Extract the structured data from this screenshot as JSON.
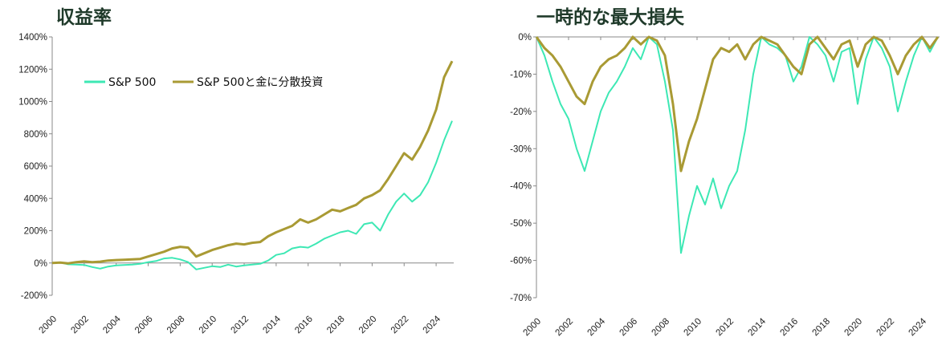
{
  "titles": {
    "left": "収益率",
    "right": "一時的な最大損失"
  },
  "colors": {
    "sp500": "#3de8b4",
    "blend": "#a99a34"
  },
  "chart_data": [
    {
      "type": "line",
      "title": "収益率",
      "x_ticks": [
        "2000",
        "2002",
        "2004",
        "2006",
        "2008",
        "2010",
        "2012",
        "2014",
        "2016",
        "2018",
        "2020",
        "2022",
        "2024"
      ],
      "y_ticks": [
        "1400%",
        "1200%",
        "1000%",
        "800%",
        "600%",
        "400%",
        "200%",
        "0%",
        "-200%"
      ],
      "ylim": [
        -200,
        1400
      ],
      "xlim": [
        2000,
        2025.1
      ],
      "legend": {
        "position": "top-left"
      },
      "series": [
        {
          "name": "S&P 500",
          "color": "#3de8b4",
          "points": [
            [
              2000,
              0
            ],
            [
              2000.5,
              3
            ],
            [
              2001,
              -8
            ],
            [
              2001.5,
              -10
            ],
            [
              2002,
              -12
            ],
            [
              2002.5,
              -25
            ],
            [
              2003,
              -35
            ],
            [
              2003.5,
              -22
            ],
            [
              2004,
              -15
            ],
            [
              2004.5,
              -12
            ],
            [
              2005,
              -10
            ],
            [
              2005.5,
              -5
            ],
            [
              2006,
              5
            ],
            [
              2006.5,
              12
            ],
            [
              2007,
              28
            ],
            [
              2007.5,
              32
            ],
            [
              2008,
              22
            ],
            [
              2008.5,
              5
            ],
            [
              2009,
              -40
            ],
            [
              2009.5,
              -30
            ],
            [
              2010,
              -20
            ],
            [
              2010.5,
              -25
            ],
            [
              2011,
              -10
            ],
            [
              2011.5,
              -22
            ],
            [
              2012,
              -15
            ],
            [
              2012.5,
              -10
            ],
            [
              2013,
              -5
            ],
            [
              2013.5,
              15
            ],
            [
              2014,
              50
            ],
            [
              2014.5,
              60
            ],
            [
              2015,
              90
            ],
            [
              2015.5,
              100
            ],
            [
              2016,
              95
            ],
            [
              2016.5,
              120
            ],
            [
              2017,
              150
            ],
            [
              2017.5,
              170
            ],
            [
              2018,
              190
            ],
            [
              2018.5,
              200
            ],
            [
              2019,
              180
            ],
            [
              2019.5,
              240
            ],
            [
              2020,
              250
            ],
            [
              2020.5,
              200
            ],
            [
              2021,
              300
            ],
            [
              2021.5,
              380
            ],
            [
              2022,
              430
            ],
            [
              2022.5,
              380
            ],
            [
              2023,
              420
            ],
            [
              2023.5,
              500
            ],
            [
              2024,
              620
            ],
            [
              2024.5,
              760
            ],
            [
              2025,
              880
            ]
          ]
        },
        {
          "name": "S&P 500と金に分散投資",
          "color": "#a99a34",
          "points": [
            [
              2000,
              0
            ],
            [
              2000.5,
              2
            ],
            [
              2001,
              -2
            ],
            [
              2001.5,
              5
            ],
            [
              2002,
              10
            ],
            [
              2002.5,
              5
            ],
            [
              2003,
              8
            ],
            [
              2003.5,
              15
            ],
            [
              2004,
              18
            ],
            [
              2004.5,
              20
            ],
            [
              2005,
              22
            ],
            [
              2005.5,
              25
            ],
            [
              2006,
              40
            ],
            [
              2006.5,
              55
            ],
            [
              2007,
              70
            ],
            [
              2007.5,
              90
            ],
            [
              2008,
              100
            ],
            [
              2008.5,
              95
            ],
            [
              2009,
              40
            ],
            [
              2009.5,
              60
            ],
            [
              2010,
              80
            ],
            [
              2010.5,
              95
            ],
            [
              2011,
              110
            ],
            [
              2011.5,
              120
            ],
            [
              2012,
              115
            ],
            [
              2012.5,
              125
            ],
            [
              2013,
              130
            ],
            [
              2013.5,
              165
            ],
            [
              2014,
              190
            ],
            [
              2014.5,
              210
            ],
            [
              2015,
              230
            ],
            [
              2015.5,
              270
            ],
            [
              2016,
              250
            ],
            [
              2016.5,
              270
            ],
            [
              2017,
              300
            ],
            [
              2017.5,
              330
            ],
            [
              2018,
              320
            ],
            [
              2018.5,
              340
            ],
            [
              2019,
              360
            ],
            [
              2019.5,
              400
            ],
            [
              2020,
              420
            ],
            [
              2020.5,
              450
            ],
            [
              2021,
              520
            ],
            [
              2021.5,
              600
            ],
            [
              2022,
              680
            ],
            [
              2022.5,
              640
            ],
            [
              2023,
              720
            ],
            [
              2023.5,
              820
            ],
            [
              2024,
              950
            ],
            [
              2024.5,
              1150
            ],
            [
              2025,
              1250
            ]
          ]
        }
      ]
    },
    {
      "type": "line",
      "title": "一時的な最大損失",
      "x_ticks": [
        "2000",
        "2002",
        "2004",
        "2006",
        "2008",
        "2010",
        "2012",
        "2014",
        "2016",
        "2018",
        "2020",
        "2022",
        "2024"
      ],
      "y_ticks": [
        "0%",
        "-10%",
        "-20%",
        "-30%",
        "-40%",
        "-50%",
        "-60%",
        "-70%"
      ],
      "ylim": [
        -70,
        0
      ],
      "xlim": [
        2000,
        2025.1
      ],
      "series": [
        {
          "name": "S&P 500",
          "color": "#3de8b4",
          "points": [
            [
              2000,
              0
            ],
            [
              2000.5,
              -5
            ],
            [
              2001,
              -12
            ],
            [
              2001.5,
              -18
            ],
            [
              2002,
              -22
            ],
            [
              2002.5,
              -30
            ],
            [
              2003,
              -36
            ],
            [
              2003.5,
              -28
            ],
            [
              2004,
              -20
            ],
            [
              2004.5,
              -15
            ],
            [
              2005,
              -12
            ],
            [
              2005.5,
              -8
            ],
            [
              2006,
              -3
            ],
            [
              2006.5,
              -6
            ],
            [
              2007,
              0
            ],
            [
              2007.5,
              -2
            ],
            [
              2008,
              -12
            ],
            [
              2008.5,
              -25
            ],
            [
              2009,
              -58
            ],
            [
              2009.5,
              -48
            ],
            [
              2010,
              -40
            ],
            [
              2010.5,
              -45
            ],
            [
              2011,
              -38
            ],
            [
              2011.5,
              -46
            ],
            [
              2012,
              -40
            ],
            [
              2012.5,
              -36
            ],
            [
              2013,
              -25
            ],
            [
              2013.5,
              -10
            ],
            [
              2014,
              0
            ],
            [
              2014.5,
              -2
            ],
            [
              2015,
              -3
            ],
            [
              2015.5,
              -5
            ],
            [
              2016,
              -12
            ],
            [
              2016.5,
              -8
            ],
            [
              2017,
              0
            ],
            [
              2017.5,
              -2
            ],
            [
              2018,
              -5
            ],
            [
              2018.5,
              -12
            ],
            [
              2019,
              -4
            ],
            [
              2019.5,
              -3
            ],
            [
              2020,
              -18
            ],
            [
              2020.5,
              -6
            ],
            [
              2021,
              0
            ],
            [
              2021.5,
              -3
            ],
            [
              2022,
              -8
            ],
            [
              2022.5,
              -20
            ],
            [
              2023,
              -12
            ],
            [
              2023.5,
              -5
            ],
            [
              2024,
              0
            ],
            [
              2024.5,
              -4
            ],
            [
              2025,
              0
            ]
          ]
        },
        {
          "name": "S&P 500と金に分散投資",
          "color": "#a99a34",
          "points": [
            [
              2000,
              0
            ],
            [
              2000.5,
              -3
            ],
            [
              2001,
              -5
            ],
            [
              2001.5,
              -8
            ],
            [
              2002,
              -12
            ],
            [
              2002.5,
              -16
            ],
            [
              2003,
              -18
            ],
            [
              2003.5,
              -12
            ],
            [
              2004,
              -8
            ],
            [
              2004.5,
              -6
            ],
            [
              2005,
              -5
            ],
            [
              2005.5,
              -3
            ],
            [
              2006,
              0
            ],
            [
              2006.5,
              -2
            ],
            [
              2007,
              0
            ],
            [
              2007.5,
              -1
            ],
            [
              2008,
              -5
            ],
            [
              2008.5,
              -18
            ],
            [
              2009,
              -36
            ],
            [
              2009.5,
              -28
            ],
            [
              2010,
              -22
            ],
            [
              2010.5,
              -14
            ],
            [
              2011,
              -6
            ],
            [
              2011.5,
              -3
            ],
            [
              2012,
              -4
            ],
            [
              2012.5,
              -2
            ],
            [
              2013,
              -6
            ],
            [
              2013.5,
              -2
            ],
            [
              2014,
              0
            ],
            [
              2014.5,
              -1
            ],
            [
              2015,
              -2
            ],
            [
              2015.5,
              -5
            ],
            [
              2016,
              -8
            ],
            [
              2016.5,
              -10
            ],
            [
              2017,
              -2
            ],
            [
              2017.5,
              0
            ],
            [
              2018,
              -3
            ],
            [
              2018.5,
              -6
            ],
            [
              2019,
              -2
            ],
            [
              2019.5,
              -1
            ],
            [
              2020,
              -8
            ],
            [
              2020.5,
              -2
            ],
            [
              2021,
              0
            ],
            [
              2021.5,
              -1
            ],
            [
              2022,
              -5
            ],
            [
              2022.5,
              -10
            ],
            [
              2023,
              -5
            ],
            [
              2023.5,
              -2
            ],
            [
              2024,
              0
            ],
            [
              2024.5,
              -3
            ],
            [
              2025,
              0
            ]
          ]
        }
      ]
    }
  ]
}
